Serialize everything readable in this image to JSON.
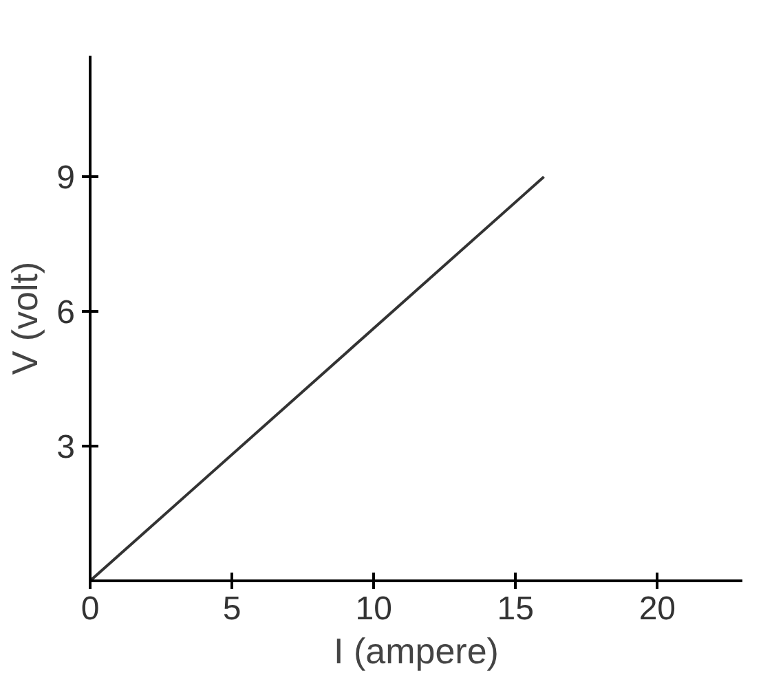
{
  "chart_data": {
    "type": "line",
    "xlabel": "I (ampere)",
    "ylabel": "V (volt)",
    "x": [
      0,
      16
    ],
    "series": [
      {
        "color": "#333333",
        "values": [
          0,
          9
        ]
      }
    ],
    "xlim": [
      0,
      23
    ],
    "ylim": [
      0,
      11.7
    ],
    "xticks": [
      0,
      5,
      10,
      15,
      20
    ],
    "yticks": [
      3,
      6,
      9
    ],
    "grid": false
  }
}
